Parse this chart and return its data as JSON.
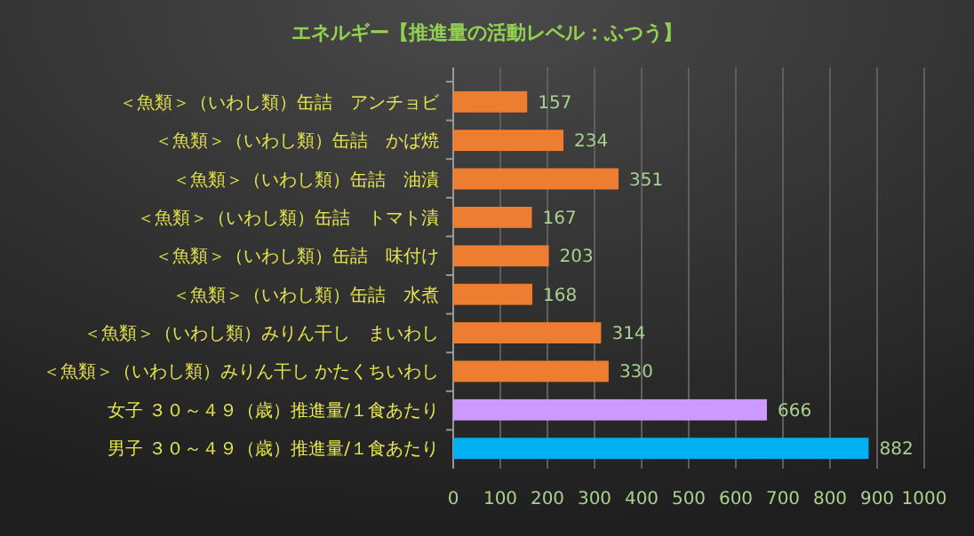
{
  "chart_data": {
    "type": "bar",
    "orientation": "horizontal",
    "title": "エネルギー【推進量の活動レベル：ふつう】",
    "categories": [
      "＜魚類＞（いわし類）缶詰　アンチョビ",
      "＜魚類＞（いわし類）缶詰　かば焼",
      "＜魚類＞（いわし類）缶詰　油漬",
      "＜魚類＞（いわし類）缶詰　トマト漬",
      "＜魚類＞（いわし類）缶詰　味付け",
      "＜魚類＞（いわし類）缶詰　水煮",
      "＜魚類＞（いわし類）みりん干し　まいわし",
      "＜魚類＞（いわし類）みりん干し かたくちいわし",
      "女子 ３０～４９（歳）推進量/１食あたり",
      "男子 ３０～４９（歳）推進量/１食あたり"
    ],
    "values": [
      157,
      234,
      351,
      167,
      203,
      168,
      314,
      330,
      666,
      882
    ],
    "colors": [
      "#ed7d31",
      "#ed7d31",
      "#ed7d31",
      "#ed7d31",
      "#ed7d31",
      "#ed7d31",
      "#ed7d31",
      "#ed7d31",
      "#cc99ff",
      "#00b0f0"
    ],
    "xlim": [
      0,
      1000
    ],
    "xticks": [
      0,
      100,
      200,
      300,
      400,
      500,
      600,
      700,
      800,
      900,
      1000
    ],
    "grid": "x",
    "data_labels": true
  }
}
